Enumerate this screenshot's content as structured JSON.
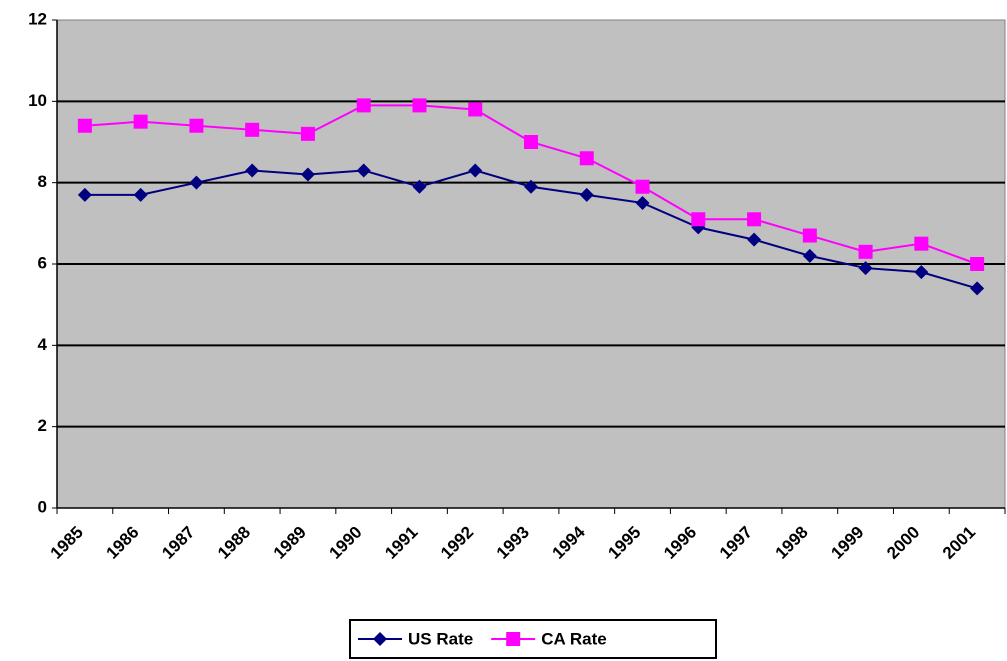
{
  "chart_data": {
    "type": "line",
    "categories": [
      "1985",
      "1986",
      "1987",
      "1988",
      "1989",
      "1990",
      "1991",
      "1992",
      "1993",
      "1994",
      "1995",
      "1996",
      "1997",
      "1998",
      "1999",
      "2000",
      "2001"
    ],
    "series": [
      {
        "name": "US Rate",
        "color": "#000080",
        "marker": "diamond",
        "values": [
          7.7,
          7.7,
          8.0,
          8.3,
          8.2,
          8.3,
          7.9,
          8.3,
          7.9,
          7.7,
          7.5,
          6.9,
          6.6,
          6.2,
          5.9,
          5.8,
          5.4
        ]
      },
      {
        "name": "CA Rate",
        "color": "#ff00ff",
        "marker": "square",
        "values": [
          9.4,
          9.5,
          9.4,
          9.3,
          9.2,
          9.9,
          9.9,
          9.8,
          9.0,
          8.6,
          7.9,
          7.1,
          7.1,
          6.7,
          6.3,
          6.5,
          6.0
        ]
      }
    ],
    "ylim": [
      0,
      12
    ],
    "yticks": [
      0,
      2,
      4,
      6,
      8,
      10,
      12
    ],
    "grid": true,
    "legend": "bottom"
  }
}
